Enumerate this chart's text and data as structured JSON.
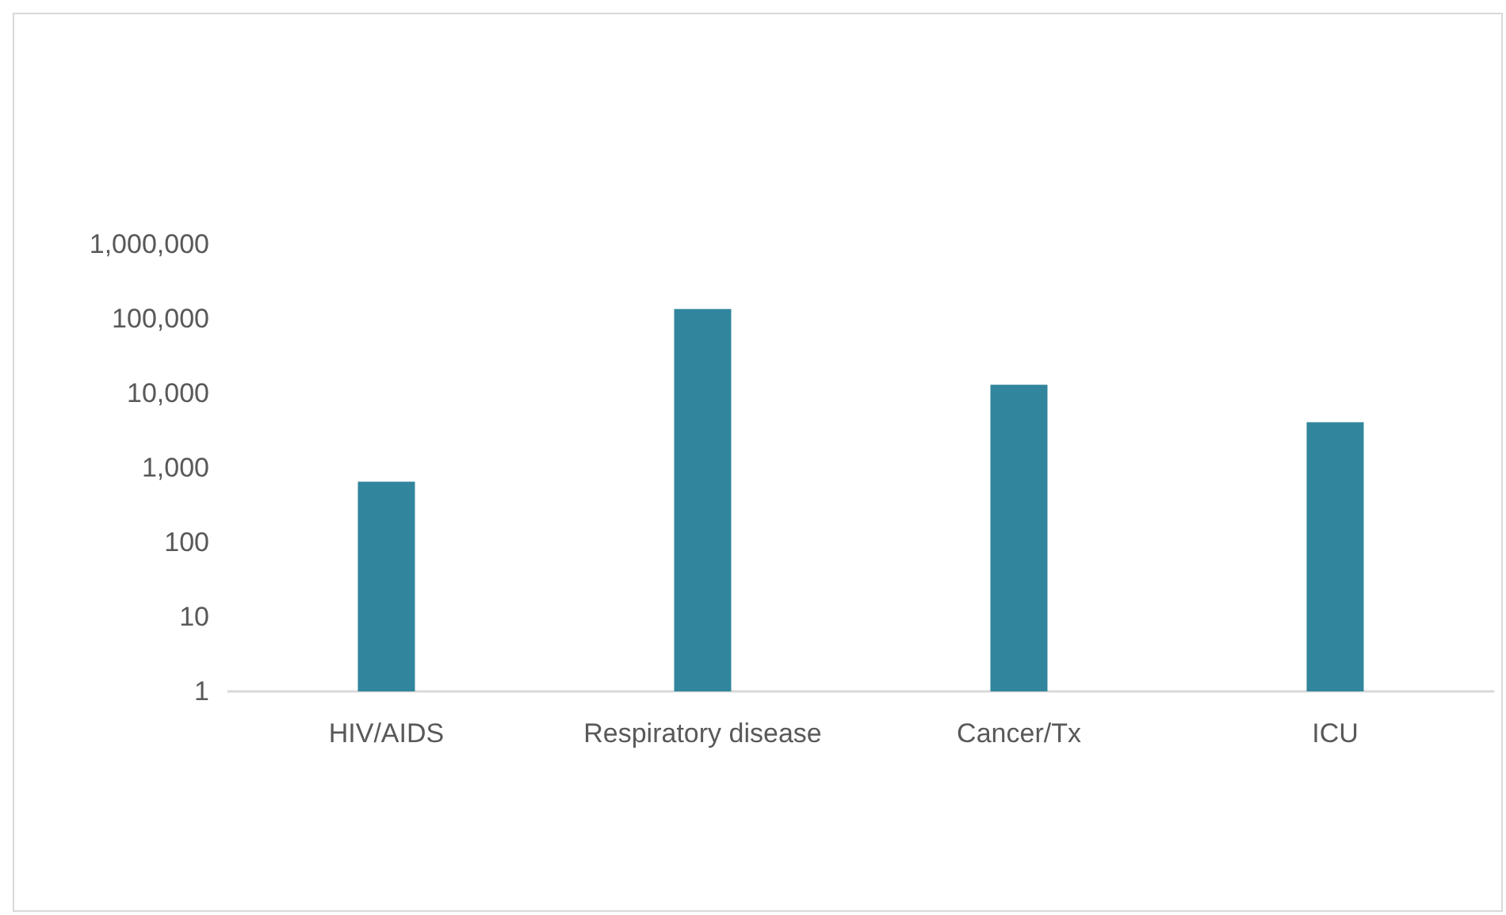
{
  "chart_data": {
    "type": "bar",
    "categories": [
      "HIV/AIDS",
      "Respiratory disease",
      "Cancer/Tx",
      "ICU"
    ],
    "values": [
      650,
      135000,
      13000,
      4100
    ],
    "color": "#31859c",
    "log": true,
    "ylim": [
      1,
      1000000
    ],
    "yticks": [
      1,
      10,
      100,
      {
        "value": 1000,
        "label": "1,000"
      },
      {
        "value": 10000,
        "label": "10,000"
      },
      {
        "value": 100000,
        "label": "100,000"
      },
      {
        "value": 1000000,
        "label": "1,000,000"
      }
    ],
    "grid": false
  }
}
